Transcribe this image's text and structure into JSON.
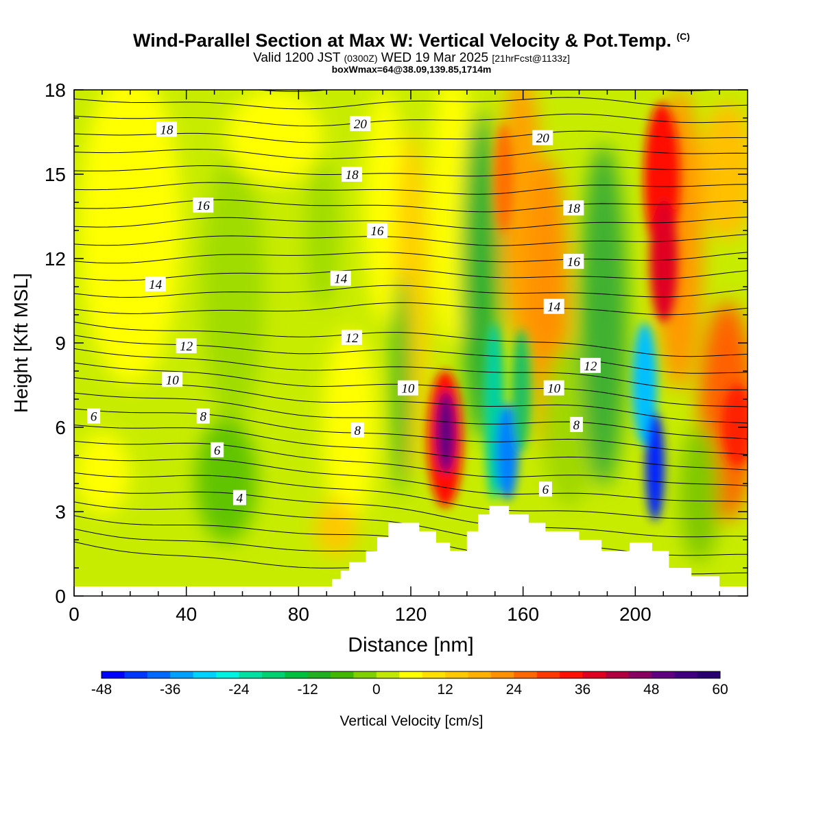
{
  "header": {
    "title": "Wind-Parallel Section at Max W: Vertical Velocity & Pot.Temp.",
    "copyright": "(C)",
    "valid_prefix": "Valid 1200 JST",
    "valid_utc": "(0300Z)",
    "valid_date": "WED 19 Mar 2025",
    "forecast": "[21hrFcst@1133z]",
    "box_info": "boxWmax=64@38.09,139.85,1714m"
  },
  "chart_data": {
    "type": "heatmap",
    "xlabel": "Distance [nm]",
    "ylabel": "Height [Kft MSL]",
    "xlim": [
      0,
      240
    ],
    "ylim": [
      0,
      18
    ],
    "x_ticks": [
      0,
      40,
      80,
      120,
      160,
      200
    ],
    "x_tick_labels": [
      "0",
      "40",
      "80",
      "120",
      "160",
      "200"
    ],
    "y_ticks": [
      0,
      3,
      6,
      9,
      12,
      15,
      18
    ],
    "y_tick_labels": [
      "0",
      "3",
      "6",
      "9",
      "12",
      "15",
      "18"
    ],
    "colorbar": {
      "label": "Vertical Velocity [cm/s]",
      "min": -48,
      "max": 60,
      "step": 4,
      "tick_labels": [
        "-48",
        "-36",
        "-24",
        "-12",
        "0",
        "12",
        "24",
        "36",
        "48",
        "60"
      ],
      "colors": [
        "#0000ff",
        "#0037ff",
        "#0069ff",
        "#00a0ff",
        "#00d2ff",
        "#00f2e0",
        "#00e0a0",
        "#00d070",
        "#00c040",
        "#20b020",
        "#40b800",
        "#80d000",
        "#c0e800",
        "#ffff00",
        "#ffe000",
        "#ffc800",
        "#ffb000",
        "#ff9000",
        "#ff6800",
        "#ff3800",
        "#ff1000",
        "#e00020",
        "#b00040",
        "#880060",
        "#600080",
        "#400080",
        "#280070"
      ]
    },
    "contour_labels": [
      {
        "text": "18",
        "x": 33,
        "y": 16.6
      },
      {
        "text": "20",
        "x": 102,
        "y": 16.8
      },
      {
        "text": "20",
        "x": 167,
        "y": 16.3
      },
      {
        "text": "16",
        "x": 46,
        "y": 13.9
      },
      {
        "text": "18",
        "x": 99,
        "y": 15.0
      },
      {
        "text": "18",
        "x": 178,
        "y": 13.8
      },
      {
        "text": "16",
        "x": 108,
        "y": 13.0
      },
      {
        "text": "16",
        "x": 178,
        "y": 11.9
      },
      {
        "text": "14",
        "x": 29,
        "y": 11.1
      },
      {
        "text": "14",
        "x": 95,
        "y": 11.3
      },
      {
        "text": "14",
        "x": 171,
        "y": 10.3
      },
      {
        "text": "12",
        "x": 40,
        "y": 8.9
      },
      {
        "text": "12",
        "x": 99,
        "y": 9.2
      },
      {
        "text": "12",
        "x": 184,
        "y": 8.2
      },
      {
        "text": "10",
        "x": 35,
        "y": 7.7
      },
      {
        "text": "10",
        "x": 119,
        "y": 7.4
      },
      {
        "text": "10",
        "x": 171,
        "y": 7.4
      },
      {
        "text": "8",
        "x": 46,
        "y": 6.4
      },
      {
        "text": "8",
        "x": 101,
        "y": 5.9
      },
      {
        "text": "8",
        "x": 179,
        "y": 6.1
      },
      {
        "text": "6",
        "x": 7,
        "y": 6.4
      },
      {
        "text": "6",
        "x": 51,
        "y": 5.2
      },
      {
        "text": "6",
        "x": 168,
        "y": 3.8
      },
      {
        "text": "4",
        "x": 59,
        "y": 3.5
      }
    ],
    "velocity_cells": [
      {
        "x": 130,
        "z": 5.7,
        "value": 60
      },
      {
        "x": 152,
        "z": 5.0,
        "value": -36
      },
      {
        "x": 205,
        "z": 4.5,
        "value": -48
      },
      {
        "x": 208,
        "z": 13.5,
        "value": 44
      },
      {
        "x": 235,
        "z": 5.7,
        "value": 40
      },
      {
        "x": 158,
        "z": 14.0,
        "value": 24
      }
    ],
    "terrain": [
      {
        "x": 90,
        "z": 0.3
      },
      {
        "x": 92,
        "z": 0.6
      },
      {
        "x": 95,
        "z": 0.9
      },
      {
        "x": 98,
        "z": 1.2
      },
      {
        "x": 104,
        "z": 1.6
      },
      {
        "x": 108,
        "z": 2.1
      },
      {
        "x": 112,
        "z": 2.6
      },
      {
        "x": 123,
        "z": 2.3
      },
      {
        "x": 129,
        "z": 1.9
      },
      {
        "x": 134,
        "z": 1.6
      },
      {
        "x": 140,
        "z": 2.3
      },
      {
        "x": 144,
        "z": 2.9
      },
      {
        "x": 148,
        "z": 3.2
      },
      {
        "x": 155,
        "z": 2.9
      },
      {
        "x": 162,
        "z": 2.6
      },
      {
        "x": 168,
        "z": 2.3
      },
      {
        "x": 180,
        "z": 2.0
      },
      {
        "x": 188,
        "z": 1.6
      },
      {
        "x": 198,
        "z": 1.9
      },
      {
        "x": 206,
        "z": 1.6
      },
      {
        "x": 212,
        "z": 1.0
      },
      {
        "x": 220,
        "z": 0.7
      },
      {
        "x": 230,
        "z": 0.3
      },
      {
        "x": 240,
        "z": 0.3
      }
    ]
  }
}
